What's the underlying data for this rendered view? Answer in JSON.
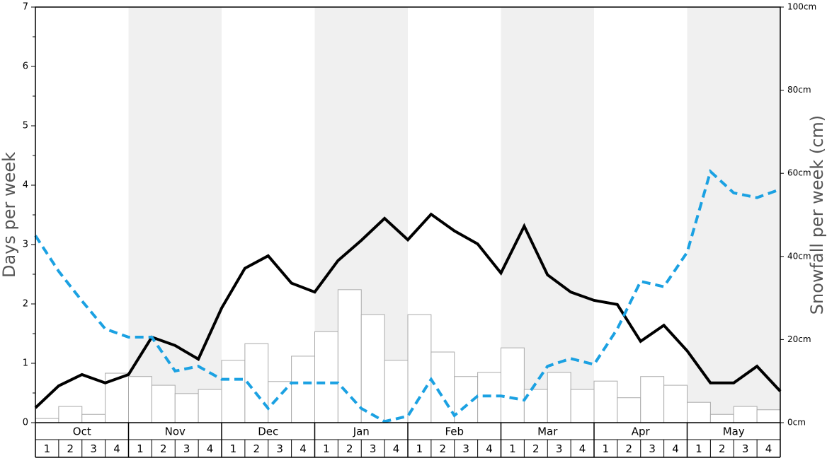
{
  "chart_data": {
    "type": "bar-line",
    "y_label": "Days per week",
    "y2_label": "Snowfall per week (cm)",
    "months": [
      "Oct",
      "Nov",
      "Dec",
      "Jan",
      "Feb",
      "Mar",
      "Apr",
      "May"
    ],
    "weeks": [
      "1",
      "2",
      "3",
      "4"
    ],
    "ylim": [
      0,
      7
    ],
    "yticks": [
      0,
      1,
      2,
      3,
      4,
      5,
      6,
      7
    ],
    "y2lim": [
      0,
      100
    ],
    "y2ticks": [
      {
        "value": 0,
        "label": "0cm"
      },
      {
        "value": 20,
        "label": "20cm"
      },
      {
        "value": 40,
        "label": "40cm"
      },
      {
        "value": 60,
        "label": "60cm"
      },
      {
        "value": 80,
        "label": "80cm"
      },
      {
        "value": 100,
        "label": "100cm"
      }
    ],
    "bars": {
      "axis": "y2",
      "color": "#ffffff",
      "edge_color": "#aaaaaa",
      "values": [
        1.0,
        3.9,
        2.0,
        11.9,
        11.1,
        9.0,
        7.0,
        8.0,
        15.0,
        19.0,
        9.9,
        16.0,
        21.9,
        32.0,
        26.0,
        15.0,
        26.0,
        17.0,
        11.1,
        12.1,
        18.0,
        8.0,
        12.1,
        8.0,
        10.0,
        6.0,
        11.1,
        9.0,
        4.9,
        2.0,
        3.9,
        3.1
      ]
    },
    "series": [
      {
        "color": "#000000",
        "style": "solid",
        "values": [
          0.25,
          0.62,
          0.81,
          0.67,
          0.81,
          1.44,
          1.3,
          1.07,
          1.93,
          2.6,
          2.81,
          2.35,
          2.2,
          2.73,
          3.07,
          3.44,
          3.08,
          3.51,
          3.23,
          3.01,
          2.52,
          3.31,
          2.49,
          2.2,
          2.06,
          1.99,
          1.37,
          1.64,
          1.21,
          0.67,
          0.67,
          0.95,
          0.53
        ]
      },
      {
        "color": "#1ba1e2",
        "style": "dashed",
        "values": [
          3.15,
          2.55,
          2.05,
          1.58,
          1.44,
          1.44,
          0.87,
          0.95,
          0.73,
          0.73,
          0.24,
          0.67,
          0.67,
          0.67,
          0.24,
          0.02,
          0.11,
          0.73,
          0.12,
          0.45,
          0.45,
          0.38,
          0.95,
          1.08,
          0.98,
          1.58,
          2.38,
          2.29,
          2.87,
          4.23,
          3.87,
          3.79,
          3.93
        ]
      }
    ]
  }
}
